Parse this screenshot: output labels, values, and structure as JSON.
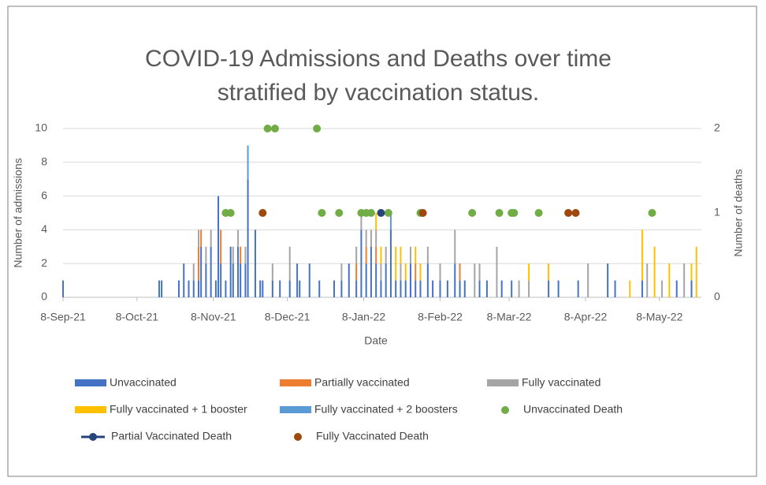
{
  "chart_data": {
    "type": "bar",
    "title_lines": [
      "COVID-19 Admissions and Deaths over time",
      "stratified by vaccination status."
    ],
    "x_label": "Date",
    "y_label": "Number of admissions",
    "y2_label": "Number of deaths",
    "stacked": true,
    "grid": true,
    "legend": "bottom",
    "xlim": [
      "2021-09-08",
      "2022-05-25"
    ],
    "xticks": [
      {
        "value": "2021-09-08",
        "label": "8-Sep-21"
      },
      {
        "value": "2021-10-08",
        "label": "8-Oct-21"
      },
      {
        "value": "2021-11-08",
        "label": "8-Nov-21"
      },
      {
        "value": "2021-12-08",
        "label": "8-Dec-21"
      },
      {
        "value": "2022-01-08",
        "label": "8-Jan-22"
      },
      {
        "value": "2022-02-08",
        "label": "8-Feb-22"
      },
      {
        "value": "2022-03-08",
        "label": "8-Mar-22"
      },
      {
        "value": "2022-04-08",
        "label": "8-Apr-22"
      },
      {
        "value": "2022-05-08",
        "label": "8-May-22"
      }
    ],
    "ylim": [
      0,
      10
    ],
    "yticks": [
      0,
      2,
      4,
      6,
      8,
      10
    ],
    "y2lim": [
      0,
      2
    ],
    "y2ticks": [
      0,
      1,
      2
    ],
    "x": [
      "2021-09-08",
      "2021-10-17",
      "2021-10-18",
      "2021-10-25",
      "2021-10-27",
      "2021-10-29",
      "2021-10-31",
      "2021-11-02",
      "2021-11-03",
      "2021-11-05",
      "2021-11-07",
      "2021-11-09",
      "2021-11-10",
      "2021-11-11",
      "2021-11-13",
      "2021-11-15",
      "2021-11-16",
      "2021-11-18",
      "2021-11-19",
      "2021-11-21",
      "2021-11-22",
      "2021-11-25",
      "2021-11-27",
      "2021-11-28",
      "2021-12-02",
      "2021-12-05",
      "2021-12-09",
      "2021-12-12",
      "2021-12-13",
      "2021-12-17",
      "2021-12-21",
      "2021-12-27",
      "2021-12-30",
      "2022-01-02",
      "2022-01-05",
      "2022-01-07",
      "2022-01-09",
      "2022-01-11",
      "2022-01-13",
      "2022-01-15",
      "2022-01-17",
      "2022-01-19",
      "2022-01-21",
      "2022-01-23",
      "2022-01-25",
      "2022-01-27",
      "2022-01-29",
      "2022-01-31",
      "2022-02-03",
      "2022-02-05",
      "2022-02-08",
      "2022-02-11",
      "2022-02-14",
      "2022-02-16",
      "2022-02-18",
      "2022-02-22",
      "2022-02-24",
      "2022-02-27",
      "2022-03-03",
      "2022-03-05",
      "2022-03-09",
      "2022-03-12",
      "2022-03-16",
      "2022-03-24",
      "2022-03-28",
      "2022-04-05",
      "2022-04-09",
      "2022-04-17",
      "2022-04-20",
      "2022-04-26",
      "2022-05-01",
      "2022-05-03",
      "2022-05-06",
      "2022-05-09",
      "2022-05-12",
      "2022-05-15",
      "2022-05-18",
      "2022-05-21",
      "2022-05-23"
    ],
    "series": [
      {
        "name": "Unvaccinated",
        "color": "#4472c4",
        "values": [
          1,
          1,
          1,
          1,
          2,
          1,
          1,
          1,
          3,
          2,
          3,
          1,
          6,
          2,
          1,
          3,
          2,
          3,
          2,
          2,
          7,
          4,
          1,
          1,
          1,
          1,
          1,
          2,
          1,
          2,
          1,
          1,
          1,
          2,
          1,
          4,
          2,
          3,
          2,
          1,
          2,
          4,
          1,
          1,
          1,
          2,
          1,
          1,
          2,
          1,
          1,
          1,
          2,
          1,
          1,
          0,
          1,
          1,
          0,
          1,
          1,
          0,
          0,
          1,
          1,
          1,
          0,
          2,
          1,
          0,
          1,
          0,
          0,
          0,
          0,
          1,
          0,
          1,
          0
        ]
      },
      {
        "name": "Partially vaccinated",
        "color": "#ed7d31",
        "values": [
          0,
          0,
          0,
          0,
          0,
          0,
          0,
          2,
          1,
          0,
          0,
          0,
          0,
          2,
          0,
          0,
          0,
          0,
          1,
          0,
          0,
          0,
          0,
          0,
          0,
          0,
          0,
          0,
          0,
          0,
          0,
          0,
          0,
          0,
          1,
          0,
          1,
          0,
          1,
          0,
          0,
          0,
          0,
          0,
          0,
          0,
          1,
          0,
          0,
          0,
          0,
          0,
          0,
          1,
          0,
          0,
          0,
          0,
          0,
          0,
          0,
          0,
          0,
          0,
          0,
          0,
          0,
          0,
          0,
          0,
          0,
          0,
          0,
          0,
          0,
          0,
          0,
          0,
          0
        ]
      },
      {
        "name": "Fully vaccinated",
        "color": "#a5a5a5",
        "values": [
          0,
          0,
          0,
          0,
          0,
          0,
          1,
          1,
          0,
          1,
          1,
          0,
          0,
          0,
          0,
          0,
          1,
          1,
          0,
          1,
          0,
          0,
          0,
          0,
          1,
          0,
          2,
          0,
          0,
          0,
          0,
          0,
          1,
          0,
          1,
          1,
          1,
          1,
          1,
          1,
          1,
          0,
          0,
          1,
          0,
          1,
          0,
          0,
          1,
          0,
          1,
          0,
          2,
          0,
          0,
          2,
          1,
          0,
          3,
          0,
          0,
          1,
          1,
          0,
          0,
          0,
          2,
          0,
          0,
          0,
          0,
          2,
          0,
          1,
          0,
          0,
          2,
          0,
          0
        ]
      },
      {
        "name": "Fully vaccinated + 1 booster",
        "color": "#ffc000",
        "values": [
          0,
          0,
          0,
          0,
          0,
          0,
          0,
          0,
          0,
          0,
          0,
          0,
          0,
          0,
          0,
          0,
          0,
          0,
          0,
          0,
          0,
          0,
          0,
          0,
          0,
          0,
          0,
          0,
          0,
          0,
          0,
          0,
          0,
          0,
          0,
          0,
          0,
          0,
          1,
          1,
          0,
          0,
          2,
          1,
          1,
          0,
          1,
          1,
          0,
          0,
          0,
          0,
          0,
          0,
          0,
          0,
          0,
          0,
          0,
          0,
          0,
          0,
          1,
          1,
          0,
          0,
          0,
          0,
          0,
          1,
          3,
          0,
          3,
          0,
          2,
          0,
          0,
          1,
          3
        ]
      },
      {
        "name": "Fully vaccinated + 2 boosters",
        "color": "#5b9bd5",
        "values": [
          0,
          0,
          0,
          0,
          0,
          0,
          0,
          0,
          0,
          0,
          0,
          0,
          0,
          0,
          0,
          0,
          0,
          0,
          0,
          0,
          2,
          0,
          0,
          0,
          0,
          0,
          0,
          0,
          0,
          0,
          0,
          0,
          0,
          0,
          0,
          0,
          0,
          0,
          0,
          0,
          0,
          1,
          0,
          0,
          0,
          0,
          0,
          0,
          0,
          0,
          0,
          0,
          0,
          0,
          0,
          0,
          0,
          0,
          0,
          0,
          0,
          0,
          0,
          0,
          0,
          0,
          0,
          0,
          0,
          0,
          0,
          0,
          0,
          0,
          0,
          0,
          0,
          0,
          0
        ]
      },
      {
        "name": "Unvaccinated Death",
        "color": "#70ad47",
        "type": "scatter",
        "axis": "y2",
        "x": [
          "2021-11-13",
          "2021-11-15",
          "2021-11-30",
          "2021-12-03",
          "2021-12-20",
          "2021-12-22",
          "2021-12-29",
          "2022-01-07",
          "2022-01-09",
          "2022-01-11",
          "2022-01-18",
          "2022-01-31",
          "2022-02-21",
          "2022-03-04",
          "2022-03-09",
          "2022-03-10",
          "2022-03-20",
          "2022-05-05"
        ],
        "values": [
          1,
          1,
          2,
          2,
          2,
          1,
          1,
          1,
          1,
          1,
          1,
          1,
          1,
          1,
          1,
          1,
          1,
          1
        ]
      },
      {
        "name": "Partial Vaccinated Death",
        "color": "#264478",
        "type": "scatter",
        "axis": "y2",
        "style": "line",
        "x": [
          "2022-01-15"
        ],
        "values": [
          1
        ]
      },
      {
        "name": "Fully Vaccinated Death",
        "color": "#9e480e",
        "type": "scatter",
        "axis": "y2",
        "x": [
          "2021-11-28",
          "2022-02-01",
          "2022-04-01",
          "2022-04-04"
        ],
        "values": [
          1,
          1,
          1,
          1
        ]
      }
    ]
  }
}
